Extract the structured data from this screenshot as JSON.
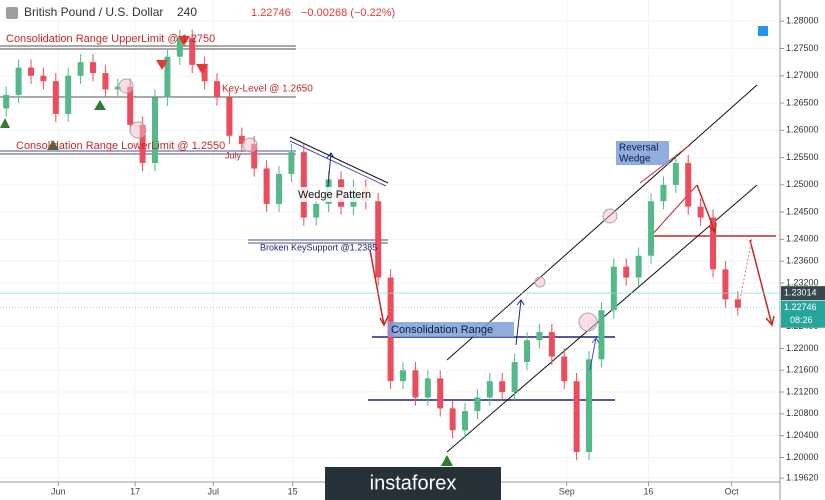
{
  "header": {
    "title": "British Pound / U.S. Dollar",
    "interval": "240",
    "price": "1.22746",
    "change": "−0.00268 (−0.22%)"
  },
  "chart_data": {
    "type": "candlestick",
    "open": [
      1.264,
      1.2665,
      1.2715,
      1.27,
      1.269,
      1.263,
      1.27,
      1.2725,
      1.2705,
      1.2675,
      1.268,
      1.261,
      1.254,
      1.266,
      1.2735,
      1.277,
      1.272,
      1.269,
      1.266,
      1.259,
      1.2575,
      1.253,
      1.2465,
      1.252,
      1.256,
      1.244,
      1.2465,
      1.251,
      1.246,
      1.2495,
      1.247,
      1.233,
      1.214,
      1.216,
      1.211,
      1.2145,
      1.209,
      1.205,
      1.2085,
      1.211,
      1.214,
      1.212,
      1.2175,
      1.2215,
      1.223,
      1.2185,
      1.214,
      1.201,
      1.218,
      1.227,
      1.235,
      1.233,
      1.237,
      1.247,
      1.25,
      1.254,
      1.246,
      1.244,
      1.2345,
      1.229
    ],
    "high": [
      1.268,
      1.273,
      1.273,
      1.2715,
      1.2705,
      1.2715,
      1.274,
      1.274,
      1.272,
      1.2695,
      1.2695,
      1.2625,
      1.2675,
      1.275,
      1.2785,
      1.2785,
      1.2735,
      1.2705,
      1.2675,
      1.2605,
      1.259,
      1.2545,
      1.2535,
      1.2575,
      1.2575,
      1.248,
      1.2525,
      1.2525,
      1.251,
      1.251,
      1.2485,
      1.2345,
      1.2175,
      1.2175,
      1.216,
      1.216,
      1.2105,
      1.21,
      1.2125,
      1.2155,
      1.2155,
      1.219,
      1.223,
      1.2245,
      1.2245,
      1.22,
      1.2155,
      1.2195,
      1.2285,
      1.2365,
      1.2365,
      1.2385,
      1.2485,
      1.2515,
      1.2555,
      1.2555,
      1.2475,
      1.2455,
      1.236,
      1.2305
    ],
    "low": [
      1.2625,
      1.265,
      1.2685,
      1.2675,
      1.2615,
      1.2615,
      1.2685,
      1.269,
      1.266,
      1.266,
      1.2595,
      1.2525,
      1.2525,
      1.2645,
      1.272,
      1.2705,
      1.2675,
      1.2645,
      1.2575,
      1.256,
      1.2515,
      1.245,
      1.245,
      1.2505,
      1.2425,
      1.2425,
      1.245,
      1.2445,
      1.2445,
      1.2455,
      1.2315,
      1.2125,
      1.2125,
      1.2095,
      1.2095,
      1.2075,
      1.2035,
      1.2035,
      1.207,
      1.2095,
      1.2105,
      1.2105,
      1.216,
      1.22,
      1.217,
      1.2125,
      1.1995,
      1.1995,
      1.2165,
      1.2255,
      1.2315,
      1.2315,
      1.2355,
      1.2455,
      1.2485,
      1.2445,
      1.2425,
      1.233,
      1.2275,
      1.226
    ],
    "close": [
      1.2665,
      1.2715,
      1.27,
      1.269,
      1.263,
      1.27,
      1.2725,
      1.2705,
      1.2675,
      1.268,
      1.261,
      1.254,
      1.266,
      1.2735,
      1.277,
      1.272,
      1.269,
      1.266,
      1.259,
      1.2575,
      1.253,
      1.2465,
      1.252,
      1.256,
      1.244,
      1.2465,
      1.251,
      1.246,
      1.2495,
      1.247,
      1.233,
      1.214,
      1.216,
      1.211,
      1.2145,
      1.209,
      1.205,
      1.2085,
      1.211,
      1.214,
      1.212,
      1.2175,
      1.2215,
      1.223,
      1.2185,
      1.214,
      1.201,
      1.218,
      1.227,
      1.235,
      1.233,
      1.237,
      1.247,
      1.25,
      1.254,
      1.246,
      1.244,
      1.2345,
      1.229,
      1.22746
    ],
    "up_color": "#53b987",
    "down_color": "#eb4d5c",
    "xlim": [
      -0.5,
      62.4
    ],
    "xticks": [
      {
        "value": 4.2,
        "label": "Jun"
      },
      {
        "value": 10.4,
        "label": "17"
      },
      {
        "value": 16.7,
        "label": "Jul"
      },
      {
        "value": 23.1,
        "label": "15"
      },
      {
        "value": 45.2,
        "label": "Sep"
      },
      {
        "value": 51.8,
        "label": "16"
      },
      {
        "value": 58.5,
        "label": "Oct"
      }
    ],
    "ylim": [
      1.1955,
      1.2839
    ],
    "yticks": [
      {
        "value": 1.28,
        "label": "1.28000"
      },
      {
        "value": 1.275,
        "label": "1.27500"
      },
      {
        "value": 1.27,
        "label": "1.27000"
      },
      {
        "value": 1.265,
        "label": "1.26500"
      },
      {
        "value": 1.26,
        "label": "1.26000"
      },
      {
        "value": 1.255,
        "label": "1.25500"
      },
      {
        "value": 1.25,
        "label": "1.25000"
      },
      {
        "value": 1.245,
        "label": "1.24500"
      },
      {
        "value": 1.24,
        "label": "1.24000"
      },
      {
        "value": 1.236,
        "label": "1.23600"
      },
      {
        "value": 1.232,
        "label": "1.23200"
      },
      {
        "value": 1.224,
        "label": "1.22400"
      },
      {
        "value": 1.22,
        "label": "1.22000"
      },
      {
        "value": 1.216,
        "label": "1.21600"
      },
      {
        "value": 1.212,
        "label": "1.21200"
      },
      {
        "value": 1.208,
        "label": "1.20800"
      },
      {
        "value": 1.204,
        "label": "1.20400"
      },
      {
        "value": 1.2,
        "label": "1.20000"
      },
      {
        "value": 1.1962,
        "label": "1.19620"
      }
    ],
    "grid": true,
    "marker_price": 1.23014,
    "last_price": 1.22746,
    "countdown": "08:26",
    "annotations": [
      "Consolidation Range UpperLimit @ 1.2750",
      "Key-Level @ 1.2650",
      "Consolidation Range LowerLimit @ 1.2550",
      "July",
      "Wedge Pattern",
      "Broken KeySupport @1.2385",
      "Consolidation Range",
      "Reversal",
      "Wedge"
    ],
    "watermark": "instaforex"
  }
}
